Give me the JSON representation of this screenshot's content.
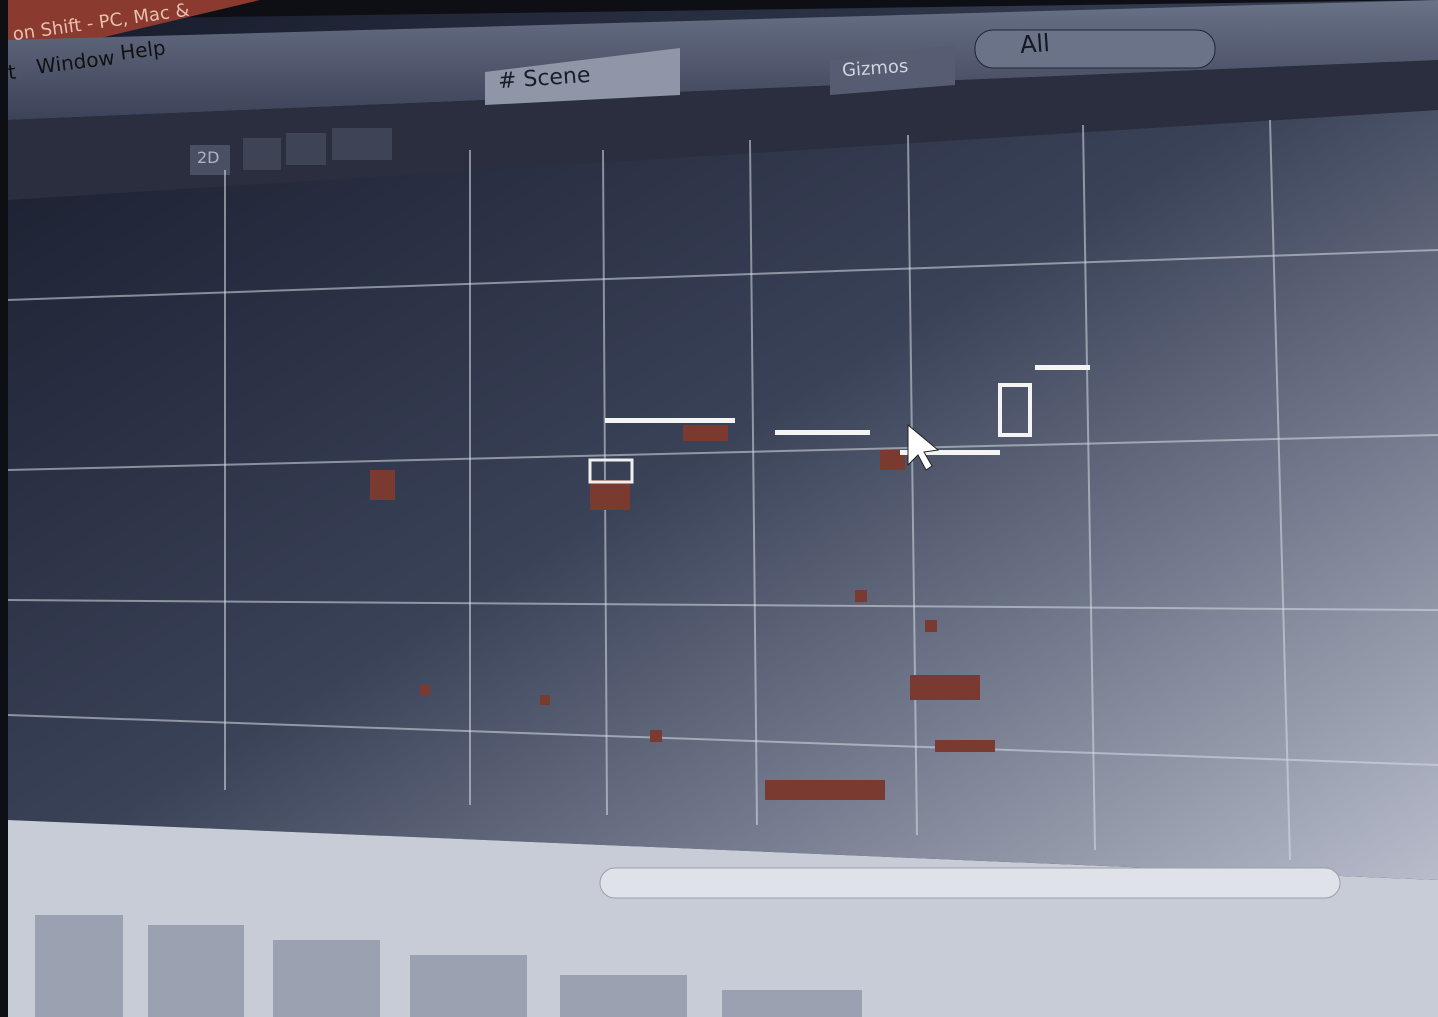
{
  "window_title": "on Shift - PC, Mac &",
  "menu": [
    "t",
    "Window",
    "Help"
  ],
  "scene_tab": "# Scene",
  "toolbar": {
    "mode_2d": "2D",
    "gizmos": "Gizmos",
    "search": "All"
  }
}
